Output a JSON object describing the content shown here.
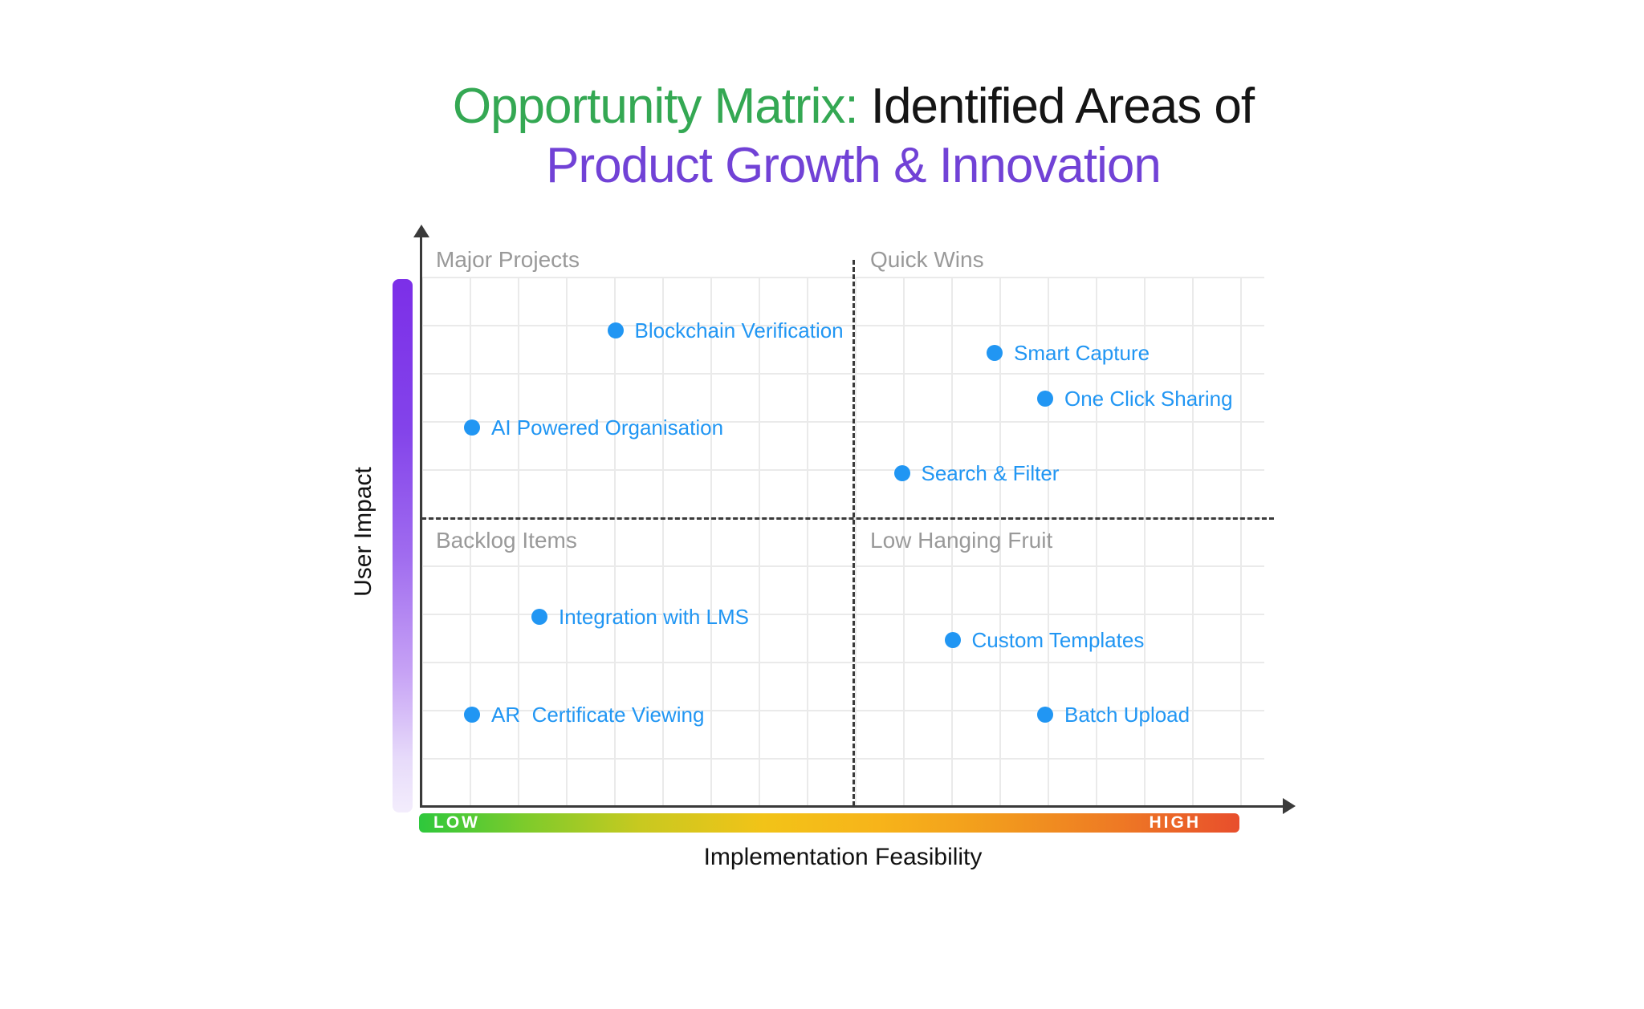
{
  "title": {
    "highlight": "Opportunity Matrix:",
    "rest": " Identified Areas of",
    "line2": "Product Growth & Innovation"
  },
  "axes": {
    "x_label": "Implementation Feasibility",
    "y_label": "User Impact",
    "x_low_label": "LOW",
    "x_high_label": "HIGH"
  },
  "chart_data": {
    "type": "scatter",
    "title": "Opportunity Matrix: Identified Areas of Product Growth & Innovation",
    "xlabel": "Implementation Feasibility",
    "ylabel": "User Impact",
    "x_scale": {
      "min_label": "LOW",
      "max_label": "HIGH",
      "range": [
        0,
        100
      ]
    },
    "y_scale": {
      "range": [
        0,
        100
      ]
    },
    "grid": true,
    "quadrants": {
      "top_left": "Major Projects",
      "top_right": "Quick Wins",
      "bottom_left": "Backlog Items",
      "bottom_right": "Low Hanging Fruit"
    },
    "points": [
      {
        "label": "Blockchain Verification",
        "feasibility": 23,
        "impact": 83
      },
      {
        "label": "Smart Capture",
        "feasibility": 68,
        "impact": 79
      },
      {
        "label": "One Click Sharing",
        "feasibility": 74,
        "impact": 71
      },
      {
        "label": "AI Powered Organisation",
        "feasibility": 6,
        "impact": 66
      },
      {
        "label": "Search & Filter",
        "feasibility": 57,
        "impact": 58
      },
      {
        "label": "Integration with LMS",
        "feasibility": 14,
        "impact": 33
      },
      {
        "label": "Custom Templates",
        "feasibility": 63,
        "impact": 29
      },
      {
        "label": "AR  Certificate Viewing",
        "feasibility": 6,
        "impact": 16
      },
      {
        "label": "Batch Upload",
        "feasibility": 74,
        "impact": 16
      }
    ]
  },
  "colors": {
    "title_highlight": "#34A853",
    "title_main": "#151515",
    "title_line2": "#7142D6",
    "point": "#2196F3",
    "point_label": "#2196F3",
    "quadrant_label": "#999999",
    "grid_line": "#EAEAEA",
    "axis_line": "#3A3A3A",
    "impact_gradient_top": "#7C2FE8",
    "impact_gradient_bottom": "#F3EDFC",
    "feasibility_gradient_start": "#2EC83C",
    "feasibility_gradient_mid": "#F7B41A",
    "feasibility_gradient_end": "#E84E2C"
  }
}
